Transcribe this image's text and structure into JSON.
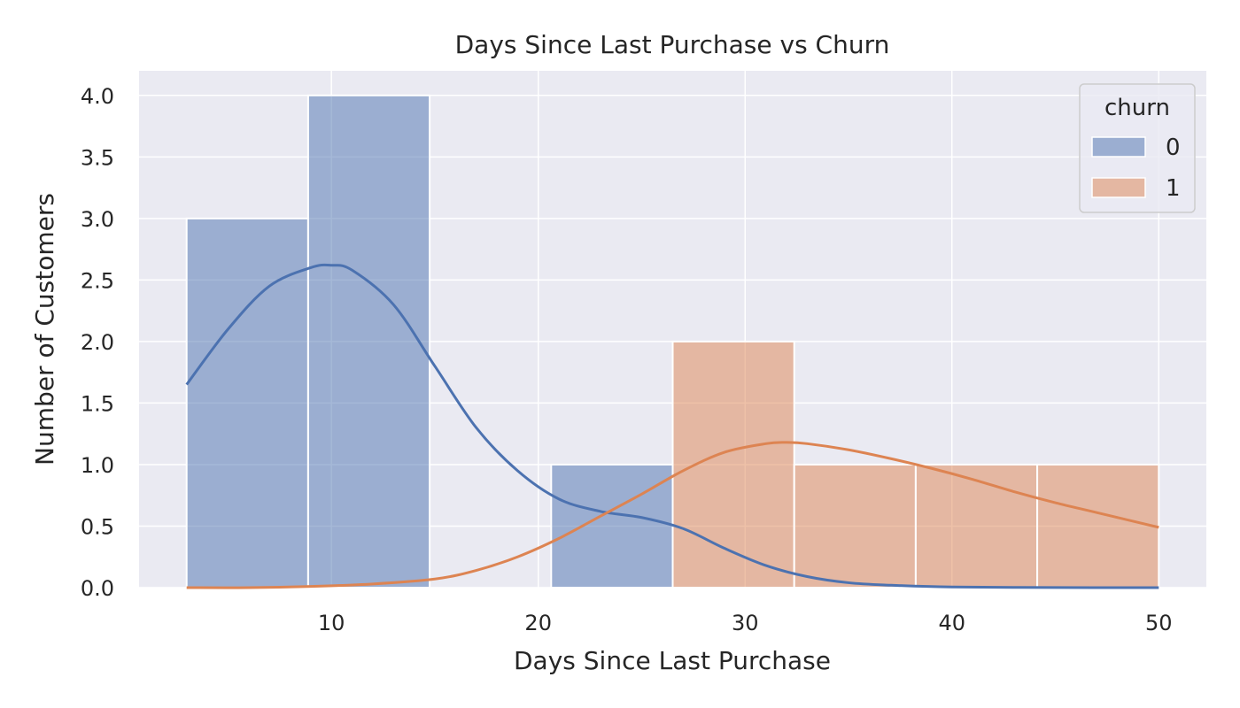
{
  "chart_data": {
    "type": "histogram",
    "title": "Days Since Last Purchase vs Churn",
    "xlabel": "Days Since Last Purchase",
    "ylabel": "Number of Customers",
    "xlim": [
      0.7,
      52.3
    ],
    "ylim": [
      0,
      4.2
    ],
    "xticks": [
      10,
      20,
      30,
      40,
      50
    ],
    "yticks": [
      0.0,
      0.5,
      1.0,
      1.5,
      2.0,
      2.5,
      3.0,
      3.5,
      4.0
    ],
    "ytick_labels": [
      "0.0",
      "0.5",
      "1.0",
      "1.5",
      "2.0",
      "2.5",
      "3.0",
      "3.5",
      "4.0"
    ],
    "grid": true,
    "bin_edges": [
      3.0,
      8.875,
      14.75,
      20.625,
      26.5,
      32.375,
      38.25,
      44.125,
      50.0
    ],
    "legend": {
      "title": "churn",
      "placement": "top-right"
    },
    "series": [
      {
        "name": "0",
        "color": "#4c72b0",
        "counts": [
          3,
          4,
          0,
          1,
          0,
          0,
          0,
          0
        ],
        "kde": {
          "x": [
            3,
            5,
            7,
            9,
            10,
            11,
            13,
            15,
            17,
            19,
            21,
            23,
            25,
            27,
            29,
            31,
            33,
            35,
            37,
            40,
            45,
            50
          ],
          "y": [
            1.65,
            2.1,
            2.45,
            2.6,
            2.62,
            2.58,
            2.3,
            1.8,
            1.3,
            0.95,
            0.72,
            0.62,
            0.57,
            0.48,
            0.32,
            0.18,
            0.09,
            0.04,
            0.02,
            0.005,
            0.001,
            0.0
          ]
        }
      },
      {
        "name": "1",
        "color": "#dd8452",
        "counts": [
          0,
          0,
          0,
          0,
          2,
          1,
          1,
          1
        ],
        "kde": {
          "x": [
            3,
            6,
            9,
            12,
            15,
            17,
            19,
            21,
            23,
            25,
            27,
            29,
            31,
            32,
            33,
            35,
            37,
            39,
            41,
            43,
            45,
            47,
            50
          ],
          "y": [
            0.0,
            0.0,
            0.01,
            0.03,
            0.07,
            0.14,
            0.25,
            0.4,
            0.58,
            0.76,
            0.95,
            1.1,
            1.17,
            1.18,
            1.17,
            1.12,
            1.05,
            0.97,
            0.88,
            0.78,
            0.69,
            0.61,
            0.49
          ]
        }
      }
    ]
  }
}
